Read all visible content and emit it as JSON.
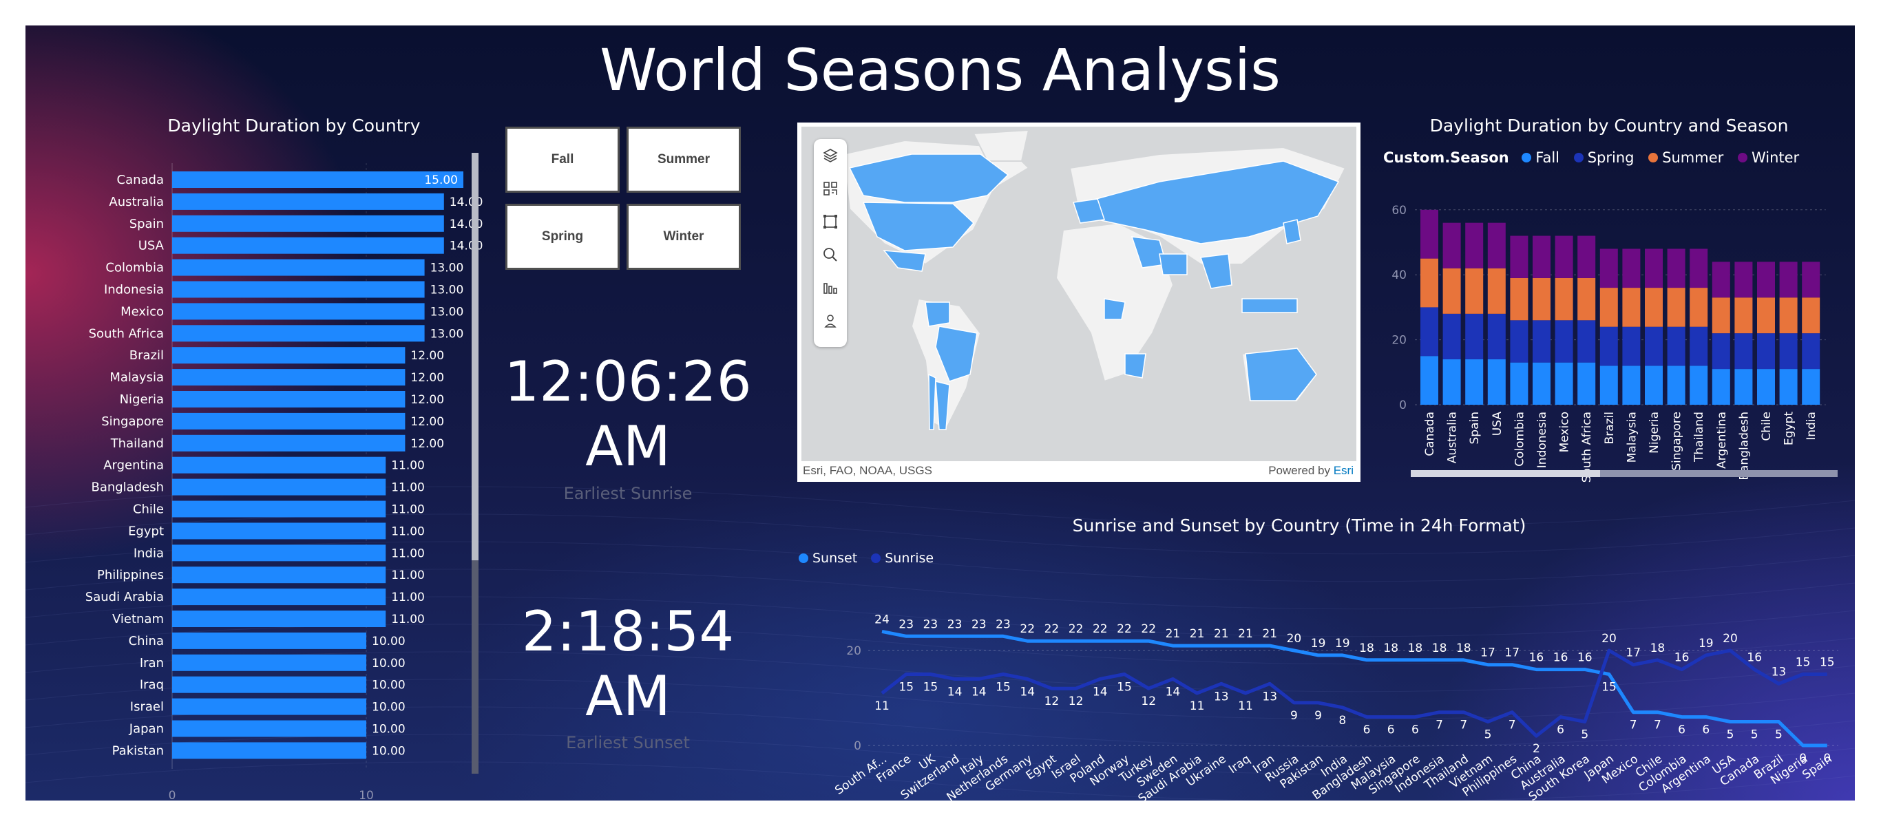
{
  "page": {
    "title": "World Seasons Analysis"
  },
  "daylight_bar": {
    "title": "Daylight Duration by Country",
    "categories": [
      "Canada",
      "Australia",
      "Spain",
      "USA",
      "Colombia",
      "Indonesia",
      "Mexico",
      "South Africa",
      "Brazil",
      "Malaysia",
      "Nigeria",
      "Singapore",
      "Thailand",
      "Argentina",
      "Bangladesh",
      "Chile",
      "Egypt",
      "India",
      "Philippines",
      "Saudi Arabia",
      "Vietnam",
      "China",
      "Iran",
      "Iraq",
      "Israel",
      "Japan",
      "Pakistan"
    ],
    "values": [
      15,
      14,
      14,
      14,
      13,
      13,
      13,
      13,
      12,
      12,
      12,
      12,
      12,
      11,
      11,
      11,
      11,
      11,
      11,
      11,
      11,
      10,
      10,
      10,
      10,
      10,
      10
    ],
    "value_labels": [
      "15.00",
      "14.00",
      "14.00",
      "14.00",
      "13.00",
      "13.00",
      "13.00",
      "13.00",
      "12.00",
      "12.00",
      "12.00",
      "12.00",
      "12.00",
      "11.00",
      "11.00",
      "11.00",
      "11.00",
      "11.00",
      "11.00",
      "11.00",
      "11.00",
      "10.00",
      "10.00",
      "10.00",
      "10.00",
      "10.00",
      "10.00"
    ],
    "x_ticks": [
      "0",
      "10"
    ],
    "bar_color": "#1e88ff"
  },
  "slicer": {
    "buttons": [
      "Fall",
      "Summer",
      "Spring",
      "Winter"
    ]
  },
  "cards": [
    {
      "value_line1": "12:06:26",
      "value_line2": "AM",
      "label": "Earliest Sunrise"
    },
    {
      "value_line1": "2:18:54",
      "value_line2": "AM",
      "label": "Earliest Sunset"
    }
  ],
  "map": {
    "attribution": "Esri, FAO, NOAA, USGS",
    "powered_by": "Powered by",
    "powered_by_brand": "Esri",
    "tools": [
      "layers-icon",
      "qr-code-icon",
      "select-rectangle-icon",
      "search-icon",
      "bar-chart-icon",
      "person-pin-icon"
    ],
    "land_color": "#55a7f4",
    "base_land_color": "#f2f2f2",
    "water_color": "#d5d7d9"
  },
  "chart_data": [
    {
      "type": "bar",
      "title": "Daylight Duration by Country",
      "categories": [
        "Canada",
        "Australia",
        "Spain",
        "USA",
        "Colombia",
        "Indonesia",
        "Mexico",
        "South Africa",
        "Brazil",
        "Malaysia",
        "Nigeria",
        "Singapore",
        "Thailand",
        "Argentina",
        "Bangladesh",
        "Chile",
        "Egypt",
        "India",
        "Philippines",
        "Saudi Arabia",
        "Vietnam",
        "China",
        "Iran",
        "Iraq",
        "Israel",
        "Japan",
        "Pakistan"
      ],
      "values": [
        15,
        14,
        14,
        14,
        13,
        13,
        13,
        13,
        12,
        12,
        12,
        12,
        12,
        11,
        11,
        11,
        11,
        11,
        11,
        11,
        11,
        10,
        10,
        10,
        10,
        10,
        10
      ]
    },
    {
      "type": "bar",
      "stacked": true,
      "title": "Daylight Duration by Country and Season",
      "legend_title": "Custom.Season",
      "categories": [
        "Canada",
        "Australia",
        "Spain",
        "USA",
        "Colombia",
        "Indonesia",
        "Mexico",
        "South Africa",
        "Brazil",
        "Malaysia",
        "Nigeria",
        "Singapore",
        "Thailand",
        "Argentina",
        "Bangladesh",
        "Chile",
        "Egypt",
        "India"
      ],
      "series": [
        {
          "name": "Fall",
          "color": "#1e88ff",
          "values": [
            15,
            14,
            14,
            14,
            13,
            13,
            13,
            13,
            12,
            12,
            12,
            12,
            12,
            11,
            11,
            11,
            11,
            11
          ]
        },
        {
          "name": "Spring",
          "color": "#1c34b8",
          "values": [
            15,
            14,
            14,
            14,
            13,
            13,
            13,
            13,
            12,
            12,
            12,
            12,
            12,
            11,
            11,
            11,
            11,
            11
          ]
        },
        {
          "name": "Summer",
          "color": "#e8743b",
          "values": [
            15,
            14,
            14,
            14,
            13,
            13,
            13,
            13,
            12,
            12,
            12,
            12,
            12,
            11,
            11,
            11,
            11,
            11
          ]
        },
        {
          "name": "Winter",
          "color": "#6d0b84",
          "values": [
            15,
            14,
            14,
            14,
            13,
            13,
            13,
            13,
            12,
            12,
            12,
            12,
            12,
            11,
            11,
            11,
            11,
            11
          ]
        }
      ],
      "y_ticks": [
        0,
        20,
        40,
        60
      ],
      "ylim": [
        0,
        60
      ]
    },
    {
      "type": "line",
      "title": "Sunrise and Sunset by Country (Time in 24h Format)",
      "categories": [
        "South Af...",
        "France",
        "UK",
        "Switzerland",
        "Italy",
        "Netherlands",
        "Germany",
        "Egypt",
        "Israel",
        "Poland",
        "Norway",
        "Turkey",
        "Sweden",
        "Saudi Arabia",
        "Ukraine",
        "Iraq",
        "Iran",
        "Russia",
        "Pakistan",
        "India",
        "Bangladesh",
        "Malaysia",
        "Singapore",
        "Indonesia",
        "Thailand",
        "Vietnam",
        "Philippines",
        "China",
        "Australia",
        "South Korea",
        "Japan",
        "Mexico",
        "Chile",
        "Colombia",
        "Argentina",
        "USA",
        "Canada",
        "Brazil",
        "Nigeria",
        "Spain"
      ],
      "series": [
        {
          "name": "Sunset",
          "color": "#1e88ff",
          "values": [
            24,
            23,
            23,
            23,
            23,
            23,
            22,
            22,
            22,
            22,
            22,
            22,
            21,
            21,
            21,
            21,
            21,
            20,
            19,
            19,
            18,
            18,
            18,
            18,
            18,
            17,
            17,
            16,
            16,
            16,
            15,
            7,
            7,
            6,
            6,
            5,
            5,
            5,
            0,
            0
          ]
        },
        {
          "name": "Sunrise",
          "color": "#1c34b8",
          "values": [
            11,
            15,
            15,
            14,
            14,
            15,
            14,
            12,
            12,
            14,
            15,
            12,
            14,
            11,
            13,
            11,
            13,
            9,
            9,
            8,
            6,
            6,
            6,
            7,
            7,
            5,
            7,
            2,
            6,
            5,
            20,
            17,
            18,
            16,
            19,
            20,
            16,
            13,
            15,
            15
          ]
        }
      ],
      "y_ticks": [
        0,
        20
      ],
      "ylim": [
        0,
        26
      ]
    }
  ]
}
